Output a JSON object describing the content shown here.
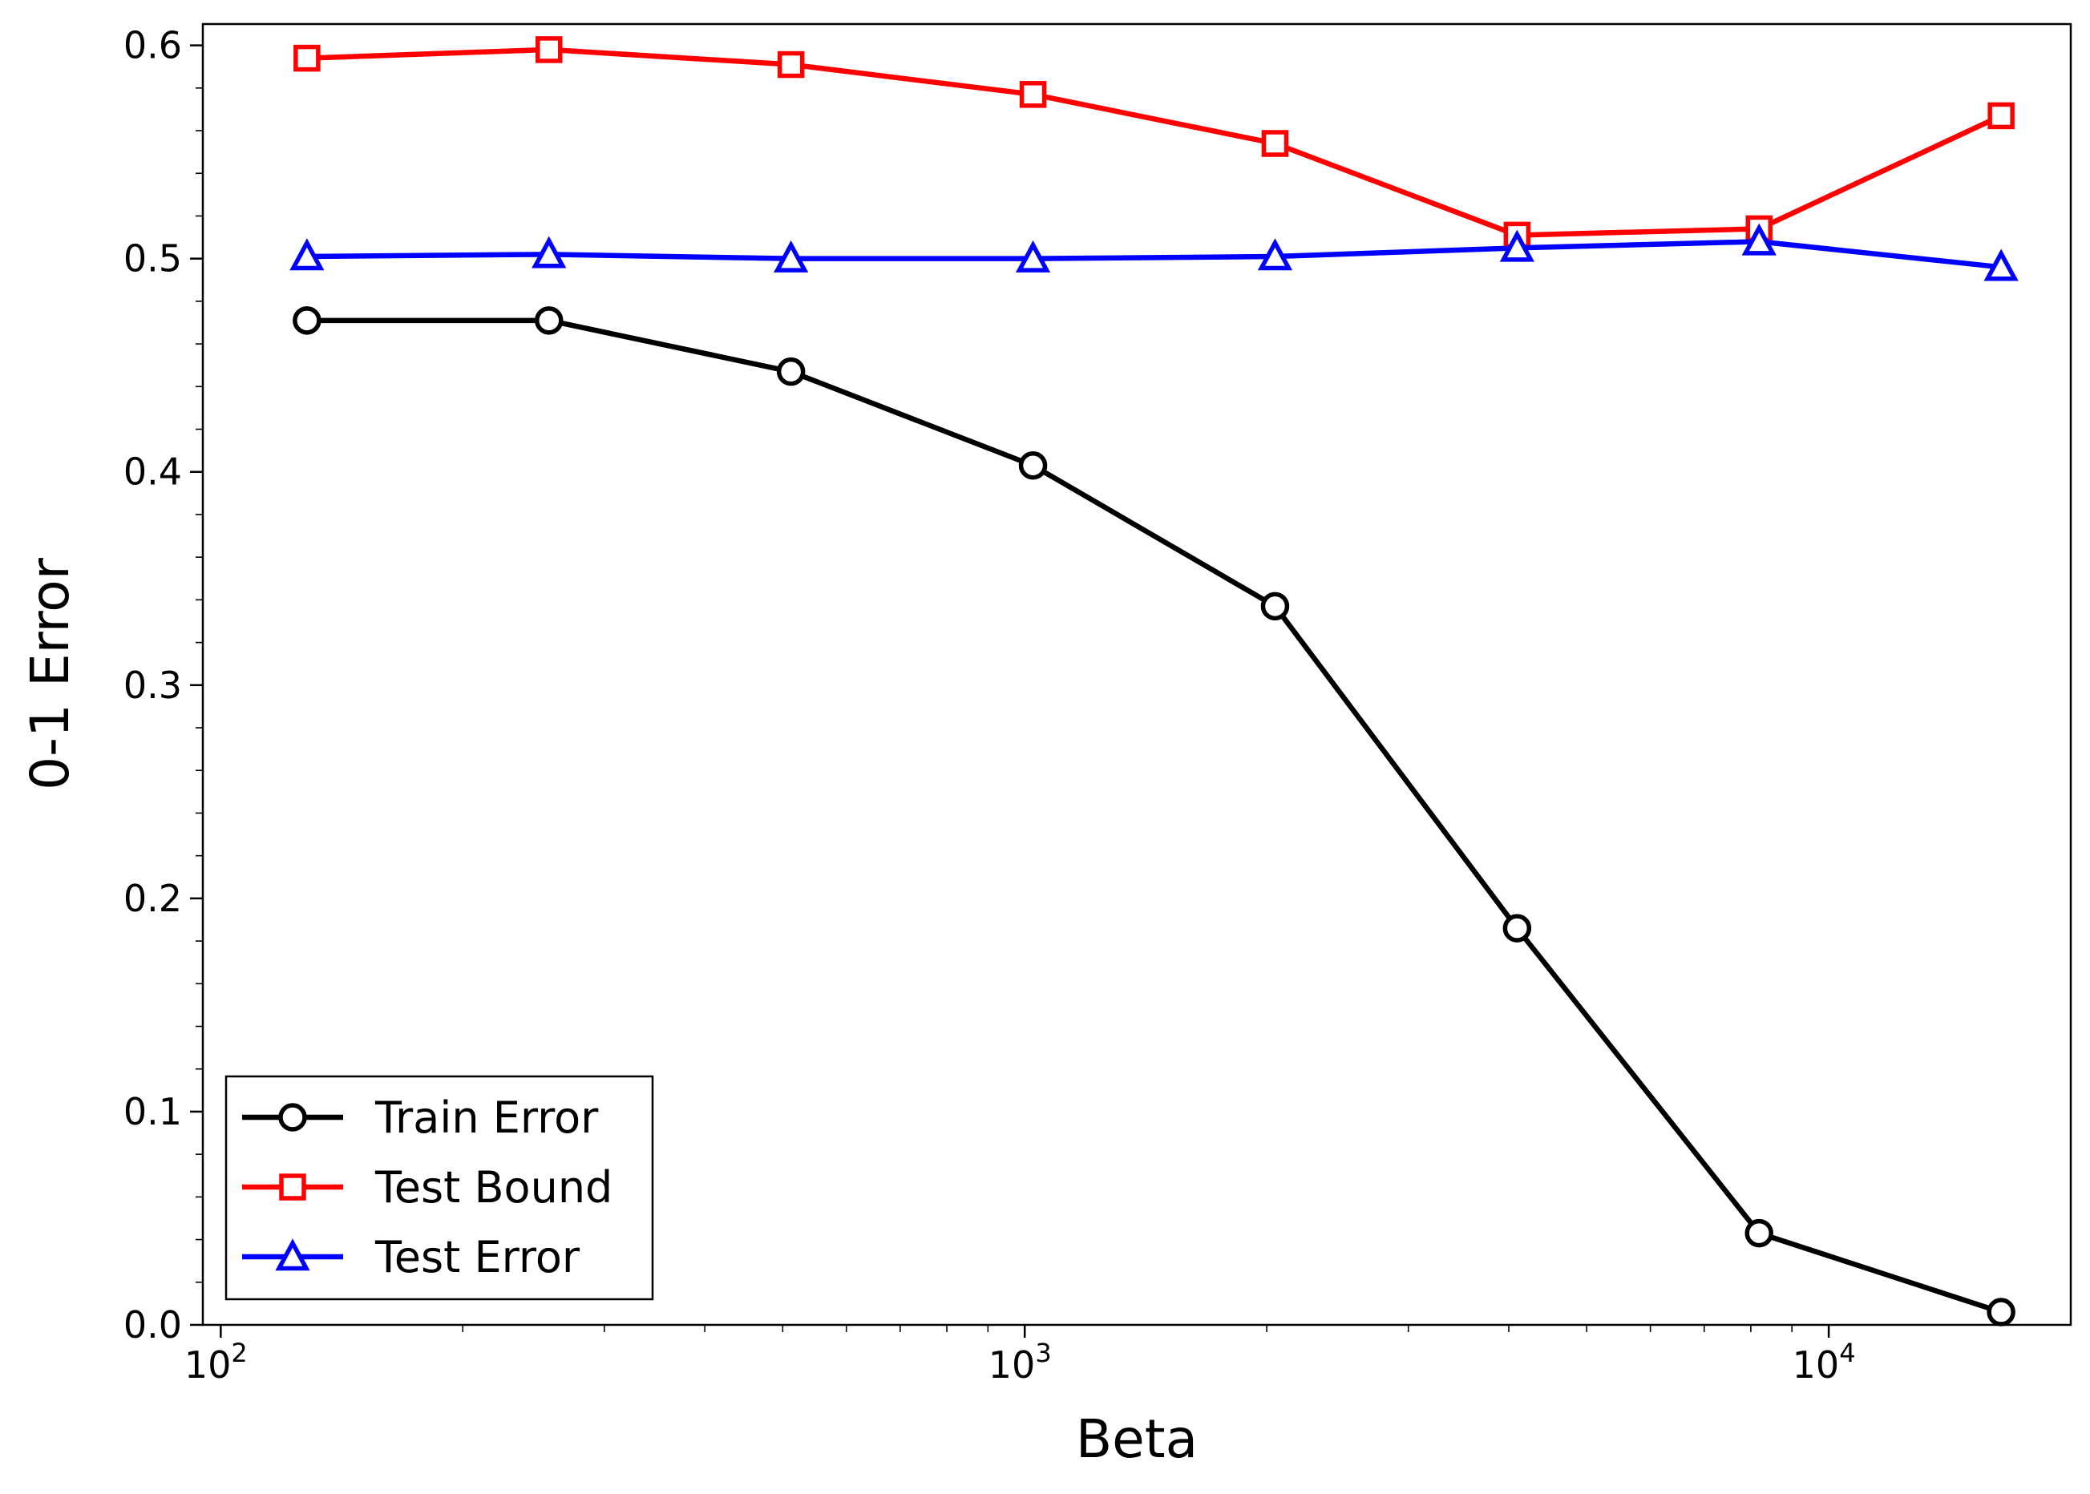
{
  "chart_data": {
    "type": "line",
    "xlabel": "Beta",
    "ylabel": "0-1 Error",
    "x_scale": "log",
    "xlim": [
      95,
      20000
    ],
    "ylim": [
      0.0,
      0.61
    ],
    "x": [
      128,
      256,
      512,
      1024,
      2048,
      4096,
      8192,
      16384
    ],
    "series": [
      {
        "name": "Train Error",
        "color": "#000000",
        "marker": "circle",
        "values": [
          0.471,
          0.471,
          0.447,
          0.403,
          0.337,
          0.186,
          0.043,
          0.006
        ]
      },
      {
        "name": "Test Bound",
        "color": "#ff0000",
        "marker": "square",
        "values": [
          0.594,
          0.598,
          0.591,
          0.577,
          0.554,
          0.511,
          0.514,
          0.567
        ]
      },
      {
        "name": "Test Error",
        "color": "#0000ff",
        "marker": "triangle",
        "values": [
          0.501,
          0.502,
          0.5,
          0.5,
          0.501,
          0.505,
          0.508,
          0.496
        ]
      }
    ],
    "y_ticks": [
      "0.0",
      "0.1",
      "0.2",
      "0.3",
      "0.4",
      "0.5",
      "0.6"
    ],
    "x_ticks": [
      {
        "base": "10",
        "exp": "2"
      },
      {
        "base": "10",
        "exp": "3"
      },
      {
        "base": "10",
        "exp": "4"
      }
    ],
    "legend_position": "lower-left",
    "grid": false
  }
}
